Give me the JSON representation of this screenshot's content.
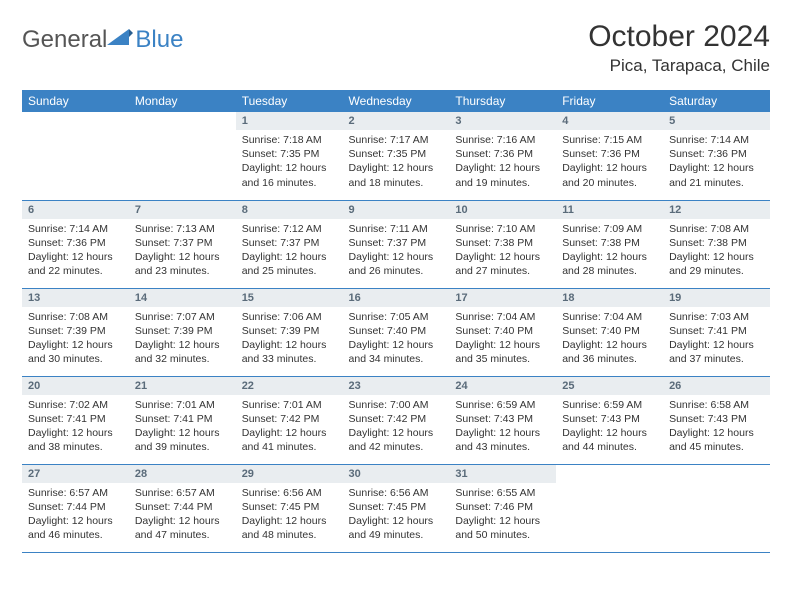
{
  "logo": {
    "text1": "General",
    "text2": "Blue",
    "color_general": "#555555",
    "color_blue": "#3b82c4"
  },
  "header": {
    "month_year": "October 2024",
    "location": "Pica, Tarapaca, Chile"
  },
  "styling": {
    "header_bg": "#3b82c4",
    "header_text": "#ffffff",
    "daynum_bg": "#e9edf0",
    "daynum_text": "#5a6b7a",
    "border_color": "#3b82c4",
    "body_text": "#333333",
    "page_bg": "#ffffff",
    "title_fontsize": 30,
    "location_fontsize": 17,
    "dayhead_fontsize": 12,
    "cell_fontsize": 10.5
  },
  "day_headers": [
    "Sunday",
    "Monday",
    "Tuesday",
    "Wednesday",
    "Thursday",
    "Friday",
    "Saturday"
  ],
  "weeks": [
    [
      null,
      null,
      {
        "d": "1",
        "sr": "7:18 AM",
        "ss": "7:35 PM",
        "dl": "12 hours and 16 minutes."
      },
      {
        "d": "2",
        "sr": "7:17 AM",
        "ss": "7:35 PM",
        "dl": "12 hours and 18 minutes."
      },
      {
        "d": "3",
        "sr": "7:16 AM",
        "ss": "7:36 PM",
        "dl": "12 hours and 19 minutes."
      },
      {
        "d": "4",
        "sr": "7:15 AM",
        "ss": "7:36 PM",
        "dl": "12 hours and 20 minutes."
      },
      {
        "d": "5",
        "sr": "7:14 AM",
        "ss": "7:36 PM",
        "dl": "12 hours and 21 minutes."
      }
    ],
    [
      {
        "d": "6",
        "sr": "7:14 AM",
        "ss": "7:36 PM",
        "dl": "12 hours and 22 minutes."
      },
      {
        "d": "7",
        "sr": "7:13 AM",
        "ss": "7:37 PM",
        "dl": "12 hours and 23 minutes."
      },
      {
        "d": "8",
        "sr": "7:12 AM",
        "ss": "7:37 PM",
        "dl": "12 hours and 25 minutes."
      },
      {
        "d": "9",
        "sr": "7:11 AM",
        "ss": "7:37 PM",
        "dl": "12 hours and 26 minutes."
      },
      {
        "d": "10",
        "sr": "7:10 AM",
        "ss": "7:38 PM",
        "dl": "12 hours and 27 minutes."
      },
      {
        "d": "11",
        "sr": "7:09 AM",
        "ss": "7:38 PM",
        "dl": "12 hours and 28 minutes."
      },
      {
        "d": "12",
        "sr": "7:08 AM",
        "ss": "7:38 PM",
        "dl": "12 hours and 29 minutes."
      }
    ],
    [
      {
        "d": "13",
        "sr": "7:08 AM",
        "ss": "7:39 PM",
        "dl": "12 hours and 30 minutes."
      },
      {
        "d": "14",
        "sr": "7:07 AM",
        "ss": "7:39 PM",
        "dl": "12 hours and 32 minutes."
      },
      {
        "d": "15",
        "sr": "7:06 AM",
        "ss": "7:39 PM",
        "dl": "12 hours and 33 minutes."
      },
      {
        "d": "16",
        "sr": "7:05 AM",
        "ss": "7:40 PM",
        "dl": "12 hours and 34 minutes."
      },
      {
        "d": "17",
        "sr": "7:04 AM",
        "ss": "7:40 PM",
        "dl": "12 hours and 35 minutes."
      },
      {
        "d": "18",
        "sr": "7:04 AM",
        "ss": "7:40 PM",
        "dl": "12 hours and 36 minutes."
      },
      {
        "d": "19",
        "sr": "7:03 AM",
        "ss": "7:41 PM",
        "dl": "12 hours and 37 minutes."
      }
    ],
    [
      {
        "d": "20",
        "sr": "7:02 AM",
        "ss": "7:41 PM",
        "dl": "12 hours and 38 minutes."
      },
      {
        "d": "21",
        "sr": "7:01 AM",
        "ss": "7:41 PM",
        "dl": "12 hours and 39 minutes."
      },
      {
        "d": "22",
        "sr": "7:01 AM",
        "ss": "7:42 PM",
        "dl": "12 hours and 41 minutes."
      },
      {
        "d": "23",
        "sr": "7:00 AM",
        "ss": "7:42 PM",
        "dl": "12 hours and 42 minutes."
      },
      {
        "d": "24",
        "sr": "6:59 AM",
        "ss": "7:43 PM",
        "dl": "12 hours and 43 minutes."
      },
      {
        "d": "25",
        "sr": "6:59 AM",
        "ss": "7:43 PM",
        "dl": "12 hours and 44 minutes."
      },
      {
        "d": "26",
        "sr": "6:58 AM",
        "ss": "7:43 PM",
        "dl": "12 hours and 45 minutes."
      }
    ],
    [
      {
        "d": "27",
        "sr": "6:57 AM",
        "ss": "7:44 PM",
        "dl": "12 hours and 46 minutes."
      },
      {
        "d": "28",
        "sr": "6:57 AM",
        "ss": "7:44 PM",
        "dl": "12 hours and 47 minutes."
      },
      {
        "d": "29",
        "sr": "6:56 AM",
        "ss": "7:45 PM",
        "dl": "12 hours and 48 minutes."
      },
      {
        "d": "30",
        "sr": "6:56 AM",
        "ss": "7:45 PM",
        "dl": "12 hours and 49 minutes."
      },
      {
        "d": "31",
        "sr": "6:55 AM",
        "ss": "7:46 PM",
        "dl": "12 hours and 50 minutes."
      },
      null,
      null
    ]
  ],
  "labels": {
    "sunrise": "Sunrise:",
    "sunset": "Sunset:",
    "daylight": "Daylight:"
  }
}
